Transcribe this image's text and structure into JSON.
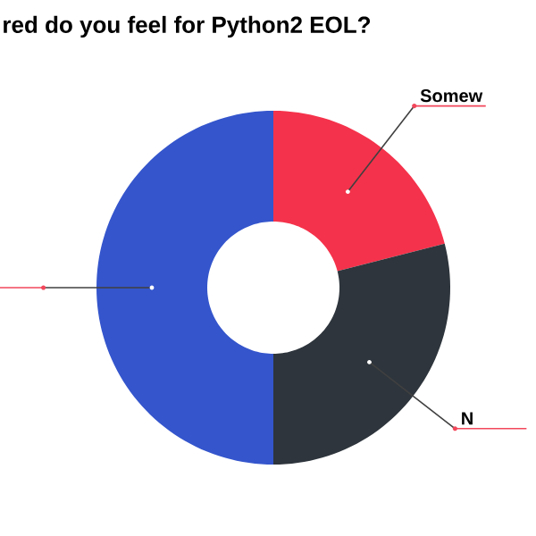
{
  "chart_data": {
    "type": "donut",
    "title": "red do you feel for Python2 EOL?",
    "categories": [
      "Somew",
      "N",
      null
    ],
    "values": [
      21,
      29,
      50
    ],
    "colors": [
      "#f5324b",
      "#2e353c",
      "#3455cc"
    ]
  }
}
